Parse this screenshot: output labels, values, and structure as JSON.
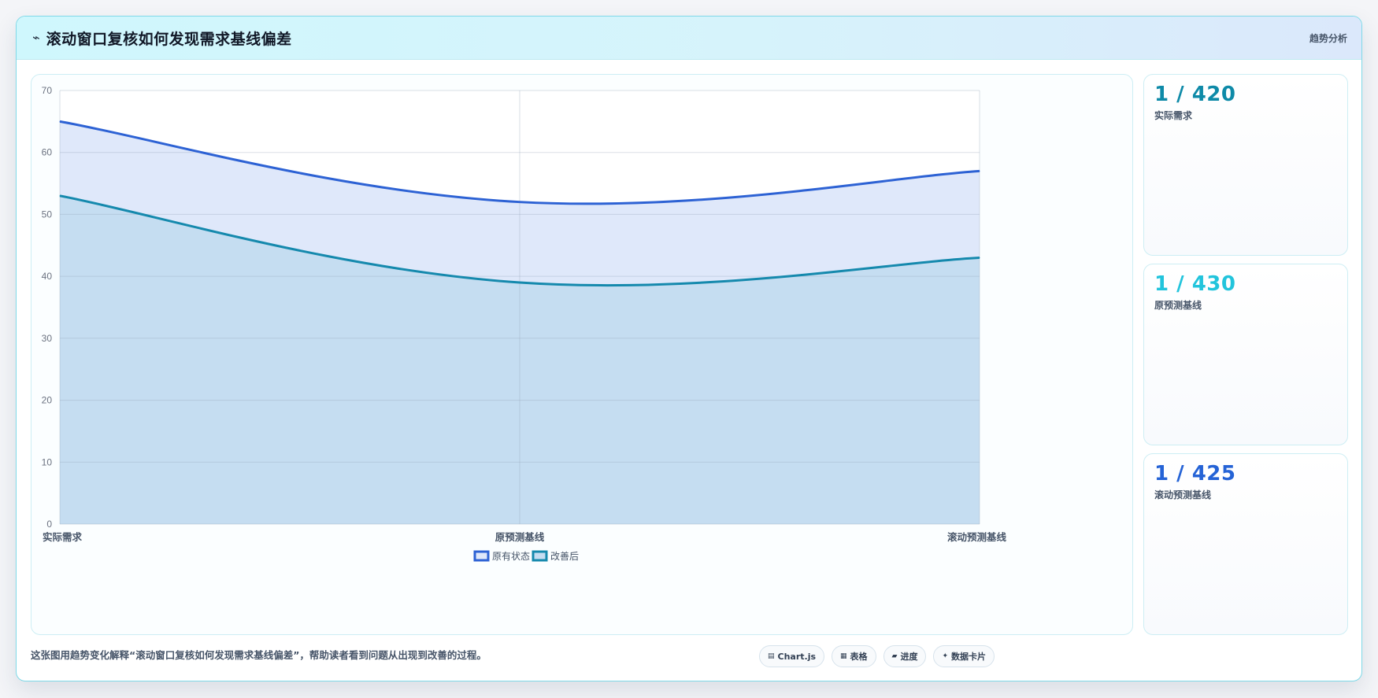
{
  "header": {
    "icon": "⌁",
    "title": "滚动窗口复核如何发现需求基线偏差",
    "tag": "趋势分析"
  },
  "stats": [
    {
      "value": "1 / 420",
      "label": "实际需求",
      "color": "#0e8aa8"
    },
    {
      "value": "1 / 430",
      "label": "原预测基线",
      "color": "#22c4dc"
    },
    {
      "value": "1 / 425",
      "label": "滚动预测基线",
      "color": "#2563d6"
    }
  ],
  "footer": {
    "text": "这张图用趋势变化解释“滚动窗口复核如何发现需求基线偏差”，帮助读者看到问题从出现到改善的过程。"
  },
  "chips": [
    {
      "icon": "▤",
      "label": "Chart.js"
    },
    {
      "icon": "▦",
      "label": "表格"
    },
    {
      "icon": "▰",
      "label": "进度"
    },
    {
      "icon": "✦",
      "label": "数据卡片"
    }
  ],
  "chart_data": {
    "type": "area",
    "categories": [
      "实际需求",
      "原预测基线",
      "滚动预测基线"
    ],
    "series": [
      {
        "name": "原有状态",
        "values": [
          65,
          52,
          57
        ],
        "color": "#2d62d4",
        "fill": "#dfe8fa"
      },
      {
        "name": "改善后",
        "values": [
          53,
          39,
          43
        ],
        "color": "#1589ad",
        "fill": "#c5ddf1"
      }
    ],
    "ylim": [
      0,
      70
    ],
    "yticks": [
      0,
      10,
      20,
      30,
      40,
      50,
      60,
      70
    ],
    "grid": true,
    "legend": "bottom"
  }
}
